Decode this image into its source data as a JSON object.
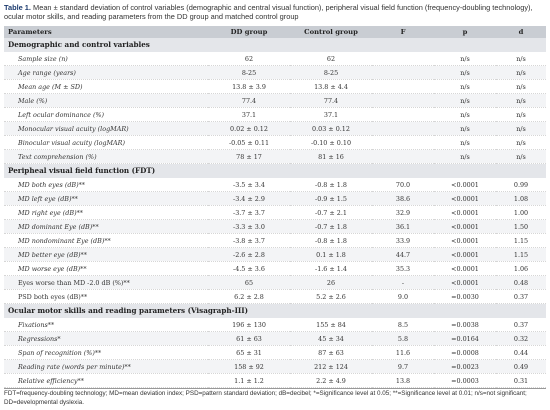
{
  "caption": {
    "label": "Table 1.",
    "text": "Mean ± standard deviation of control variables (demographic and central visual function), peripheral visual field function (frequency-doubling technology), ocular motor skills, and reading parameters from the DD group and matched control group"
  },
  "columns": [
    "Parameters",
    "DD group",
    "Control group",
    "F",
    "p",
    "d"
  ],
  "sections": [
    {
      "title": "Demographic and control variables",
      "rows": [
        {
          "label": "Sample size (n)",
          "italic": true,
          "dd": "62",
          "ctrl": "62",
          "f": "",
          "p": "n/s",
          "d": "n/s"
        },
        {
          "label": "Age range (years)",
          "italic": true,
          "dd": "8-25",
          "ctrl": "8-25",
          "f": "",
          "p": "n/s",
          "d": "n/s"
        },
        {
          "label": "Mean age (M ± SD)",
          "italic": true,
          "dd": "13.8 ± 3.9",
          "ctrl": "13.8 ± 4.4",
          "f": "",
          "p": "n/s",
          "d": "n/s"
        },
        {
          "label": "Male (%)",
          "italic": true,
          "dd": "77.4",
          "ctrl": "77.4",
          "f": "",
          "p": "n/s",
          "d": "n/s"
        },
        {
          "label": "Left ocular dominance (%)",
          "italic": true,
          "dd": "37.1",
          "ctrl": "37.1",
          "f": "",
          "p": "n/s",
          "d": "n/s"
        },
        {
          "label": "Monocular visual acuity (logMAR)",
          "italic": true,
          "dd": "0.02 ± 0.12",
          "ctrl": "0.03 ± 0.12",
          "f": "",
          "p": "n/s",
          "d": "n/s"
        },
        {
          "label": "Binocular visual acuity (logMAR)",
          "italic": true,
          "dd": "-0.05 ± 0.11",
          "ctrl": "-0.10 ± 0.10",
          "f": "",
          "p": "n/s",
          "d": "n/s"
        },
        {
          "label": "Text comprehension (%)",
          "italic": true,
          "dd": "78 ± 17",
          "ctrl": "81 ± 16",
          "f": "",
          "p": "n/s",
          "d": "n/s"
        }
      ]
    },
    {
      "title": "Peripheal visual field function (FDT)",
      "rows": [
        {
          "label": "MD both eyes (dB)**",
          "italic": true,
          "dd": "-3.5 ± 3.4",
          "ctrl": "-0.8 ± 1.8",
          "f": "70.0",
          "p": "<0.0001",
          "d": "0.99"
        },
        {
          "label": "MD left eye (dB)**",
          "italic": true,
          "dd": "-3.4 ± 2.9",
          "ctrl": "-0.9 ± 1.5",
          "f": "38.6",
          "p": "<0.0001",
          "d": "1.08"
        },
        {
          "label": "MD right eye (dB)**",
          "italic": true,
          "dd": "-3.7 ± 3.7",
          "ctrl": "-0.7 ± 2.1",
          "f": "32.9",
          "p": "<0.0001",
          "d": "1.00"
        },
        {
          "label": "MD dominant Eye (dB)**",
          "italic": true,
          "dd": "-3.3 ± 3.0",
          "ctrl": "-0.7 ± 1.8",
          "f": "36.1",
          "p": "<0.0001",
          "d": "1.50"
        },
        {
          "label": "MD nondominant Eye (dB)**",
          "italic": true,
          "dd": "-3.8 ± 3.7",
          "ctrl": "-0.8 ± 1.8",
          "f": "33.9",
          "p": "<0.0001",
          "d": "1.15"
        },
        {
          "label": "MD better eye (dB)**",
          "italic": true,
          "dd": "-2.6 ± 2.8",
          "ctrl": "0.1 ± 1.8",
          "f": "44.7",
          "p": "<0.0001",
          "d": "1.15"
        },
        {
          "label": "MD worse eye (dB)**",
          "italic": true,
          "dd": "-4.5 ± 3.6",
          "ctrl": "-1.6 ± 1.4",
          "f": "35.3",
          "p": "<0.0001",
          "d": "1.06"
        },
        {
          "label": "Eyes worse than MD -2.0 dB (%)**",
          "italic": false,
          "dd": "65",
          "ctrl": "26",
          "f": "-",
          "p": "<0.0001",
          "d": "0.48"
        },
        {
          "label": "PSD both eyes (dB)**",
          "italic": false,
          "dd": "6.2 ± 2.8",
          "ctrl": "5.2 ± 2.6",
          "f": "9.0",
          "p": "=0.0030",
          "d": "0.37"
        }
      ]
    },
    {
      "title": "Ocular motor skills and reading parameters (Visagraph-III)",
      "rows": [
        {
          "label": "Fixations**",
          "italic": true,
          "dd": "196 ± 130",
          "ctrl": "155 ± 84",
          "f": "8.5",
          "p": "=0.0038",
          "d": "0.37"
        },
        {
          "label": "Regressions*",
          "italic": true,
          "dd": "61 ± 63",
          "ctrl": "45 ± 34",
          "f": "5.8",
          "p": "=0.0164",
          "d": "0.32"
        },
        {
          "label": "Span of recognition (%)**",
          "italic": true,
          "dd": "65 ± 31",
          "ctrl": "87 ± 63",
          "f": "11.6",
          "p": "=0.0008",
          "d": "0.44"
        },
        {
          "label": "Reading rate (words per minute)**",
          "italic": true,
          "dd": "158 ± 92",
          "ctrl": "212 ± 124",
          "f": "9.7",
          "p": "=0.0023",
          "d": "0.49"
        },
        {
          "label": "Relative efficiency**",
          "italic": true,
          "dd": "1.1 ± 1.2",
          "ctrl": "2.2 ± 4.9",
          "f": "13.8",
          "p": "=0.0003",
          "d": "0.31"
        }
      ]
    }
  ],
  "footnote": "FDT=frequency-doubling technology; MD=mean deviation index; PSD=pattern standard deviation; dB=decibel; *=Significance level at 0.05; **=Significance level at 0.01; n/s=not significant; DD=developmental dyslexia."
}
